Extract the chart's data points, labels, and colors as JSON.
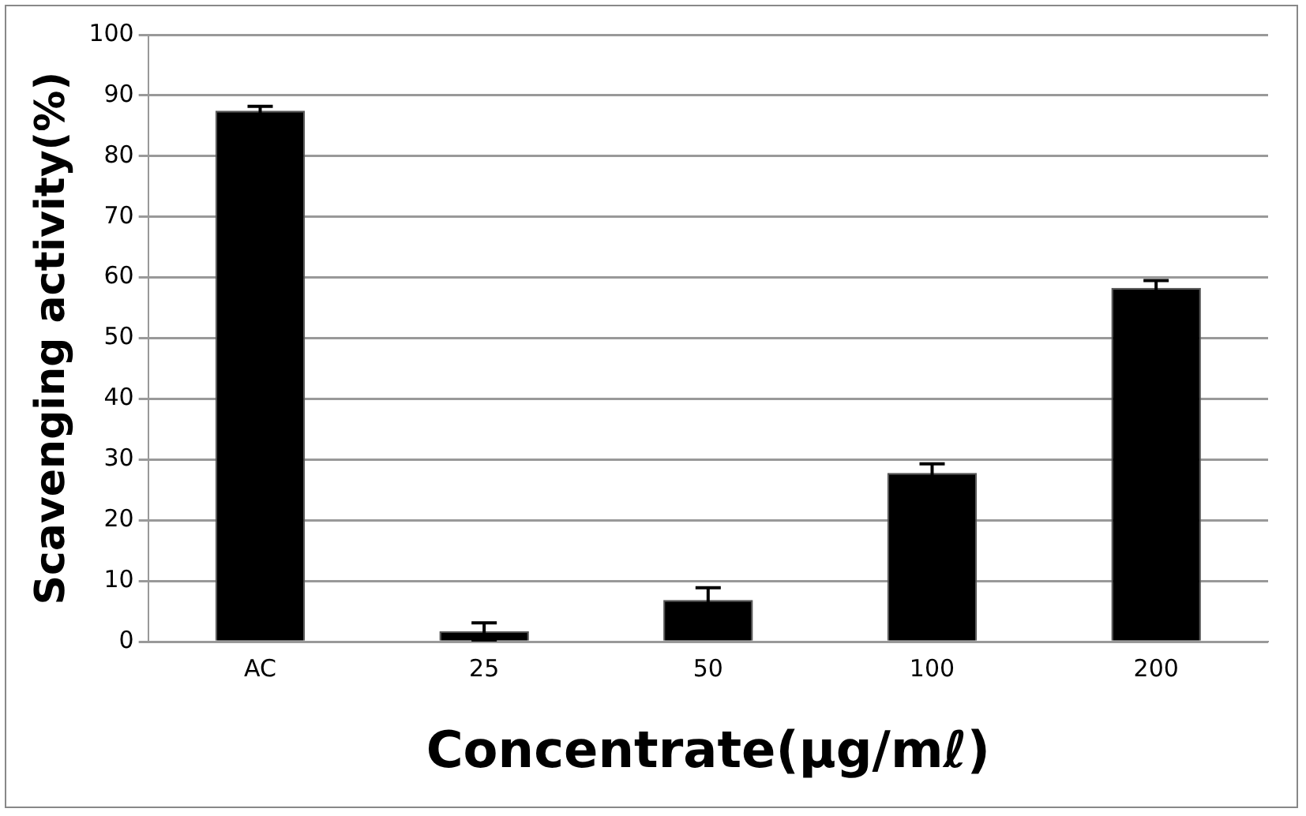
{
  "chart_data": {
    "type": "bar",
    "xlabel": "Concentrate(μg/mℓ)",
    "ylabel": "Scavenging activity(%)",
    "categories": [
      "AC",
      "25",
      "50",
      "100",
      "200"
    ],
    "values": [
      87.5,
      1.7,
      6.9,
      27.8,
      58.3
    ],
    "errors": [
      0.7,
      1.4,
      2.0,
      1.5,
      1.2
    ],
    "color": "#000000",
    "ylim": [
      0,
      100
    ],
    "yticks": [
      0,
      10,
      20,
      30,
      40,
      50,
      60,
      70,
      80,
      90,
      100
    ],
    "grid": "y"
  }
}
